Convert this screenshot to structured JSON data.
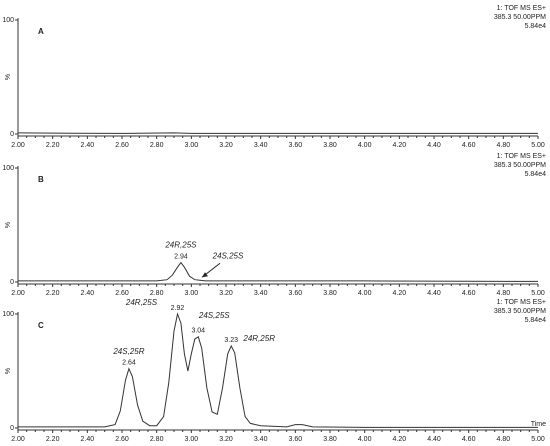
{
  "chart_data": [
    {
      "type": "line",
      "panel": "A",
      "header": [
        "1: TOF MS ES+",
        "385.3 50.00PPM",
        "5.84e4"
      ],
      "y_label": "%",
      "x": [
        2.0,
        2.3,
        2.6,
        2.9,
        3.0,
        3.3,
        3.6,
        4.0,
        4.5,
        5.0
      ],
      "values": [
        1,
        0.7,
        0.5,
        1,
        0.5,
        0.5,
        0.5,
        0.5,
        0.5,
        0.5
      ],
      "color": "#333333",
      "xlim": [
        2.0,
        5.0
      ],
      "ylim": [
        0,
        100
      ],
      "yticks": [
        0,
        100
      ],
      "xticks": [
        {
          "value": 2.0,
          "label": "2.00"
        },
        {
          "value": 2.2,
          "label": "2.20"
        },
        {
          "value": 2.4,
          "label": "2.40"
        },
        {
          "value": 2.6,
          "label": "2.60"
        },
        {
          "value": 2.8,
          "label": "2.80"
        },
        {
          "value": 3.0,
          "label": "3.00"
        },
        {
          "value": 3.2,
          "label": "3.20"
        },
        {
          "value": 3.4,
          "label": "3.40"
        },
        {
          "value": 3.6,
          "label": "3.60"
        },
        {
          "value": 3.8,
          "label": "3.80"
        },
        {
          "value": 4.0,
          "label": "4.00"
        },
        {
          "value": 4.2,
          "label": "4.20"
        },
        {
          "value": 4.4,
          "label": "4.40"
        },
        {
          "value": 4.6,
          "label": "4.60"
        },
        {
          "value": 4.8,
          "label": "4.80"
        },
        {
          "value": 5.0,
          "label": "5.00"
        }
      ]
    },
    {
      "type": "line",
      "panel": "B",
      "header": [
        "1: TOF MS ES+",
        "385.3 50.00PPM",
        "5.84e4"
      ],
      "y_label": "%",
      "x": [
        2.0,
        2.8,
        2.86,
        2.89,
        2.92,
        2.94,
        2.96,
        2.99,
        3.02,
        3.05,
        3.08,
        3.2,
        4.0,
        5.0
      ],
      "values": [
        1,
        1,
        2,
        6,
        13,
        17,
        13,
        5,
        2,
        1.5,
        1,
        1,
        1,
        0.5
      ],
      "peaks": [
        {
          "name": "24R,25S",
          "rt": 2.94
        }
      ],
      "arrow_labels": [
        {
          "name": "24S,25S",
          "x": 3.05
        }
      ],
      "color": "#333333",
      "xlim": [
        2.0,
        5.0
      ],
      "ylim": [
        0,
        100
      ],
      "yticks": [
        0,
        100
      ],
      "xticks": [
        {
          "value": 2.0,
          "label": "2.00"
        },
        {
          "value": 2.2,
          "label": "2.20"
        },
        {
          "value": 2.4,
          "label": "2.40"
        },
        {
          "value": 2.6,
          "label": "2.60"
        },
        {
          "value": 2.8,
          "label": "2.80"
        },
        {
          "value": 3.0,
          "label": "3.00"
        },
        {
          "value": 3.2,
          "label": "3.20"
        },
        {
          "value": 3.4,
          "label": "3.40"
        },
        {
          "value": 3.6,
          "label": "3.60"
        },
        {
          "value": 3.8,
          "label": "3.80"
        },
        {
          "value": 4.0,
          "label": "4.00"
        },
        {
          "value": 4.2,
          "label": "4.20"
        },
        {
          "value": 4.4,
          "label": "4.40"
        },
        {
          "value": 4.6,
          "label": "4.60"
        },
        {
          "value": 4.8,
          "label": "4.80"
        },
        {
          "value": 5.0,
          "label": "5.00"
        }
      ]
    },
    {
      "type": "line",
      "panel": "C",
      "header": [
        "1: TOF MS ES+",
        "385.3 50.00PPM",
        "5.84e4"
      ],
      "y_label": "%",
      "x_label": "Time",
      "x": [
        2.0,
        2.5,
        2.56,
        2.59,
        2.62,
        2.64,
        2.66,
        2.69,
        2.72,
        2.76,
        2.8,
        2.84,
        2.87,
        2.9,
        2.92,
        2.94,
        2.96,
        2.98,
        3.0,
        3.02,
        3.04,
        3.06,
        3.09,
        3.12,
        3.15,
        3.18,
        3.21,
        3.23,
        3.25,
        3.28,
        3.31,
        3.34,
        3.4,
        3.55,
        3.6,
        3.64,
        3.7,
        4.0,
        5.0
      ],
      "values": [
        1,
        1,
        3,
        15,
        42,
        52,
        45,
        20,
        6,
        2,
        2,
        10,
        40,
        85,
        100,
        92,
        65,
        50,
        65,
        78,
        80,
        70,
        35,
        14,
        12,
        35,
        65,
        72,
        66,
        35,
        10,
        4,
        2,
        1,
        3,
        3,
        1,
        0.5,
        0.5
      ],
      "peaks": [
        {
          "name": "24S,25R",
          "rt": 2.64
        },
        {
          "name": "24R,25S",
          "rt": 2.92
        },
        {
          "name": "24S,25S",
          "rt": 3.04
        },
        {
          "name": "24R,25R",
          "rt": 3.23
        }
      ],
      "color": "#333333",
      "xlim": [
        2.0,
        5.0
      ],
      "ylim": [
        0,
        100
      ],
      "yticks": [
        0,
        100
      ],
      "xticks": [
        {
          "value": 2.0,
          "label": "2.00"
        },
        {
          "value": 2.2,
          "label": "2.20"
        },
        {
          "value": 2.4,
          "label": "2.40"
        },
        {
          "value": 2.6,
          "label": "2.60"
        },
        {
          "value": 2.8,
          "label": "2.80"
        },
        {
          "value": 3.0,
          "label": "3.00"
        },
        {
          "value": 3.2,
          "label": "3.20"
        },
        {
          "value": 3.4,
          "label": "3.40"
        },
        {
          "value": 3.6,
          "label": "3.60"
        },
        {
          "value": 3.8,
          "label": "3.80"
        },
        {
          "value": 4.0,
          "label": "4.00"
        },
        {
          "value": 4.2,
          "label": "4.20"
        },
        {
          "value": 4.4,
          "label": "4.40"
        },
        {
          "value": 4.6,
          "label": "4.60"
        },
        {
          "value": 4.8,
          "label": "4.80"
        },
        {
          "value": 5.0,
          "label": "5.00"
        }
      ]
    }
  ]
}
